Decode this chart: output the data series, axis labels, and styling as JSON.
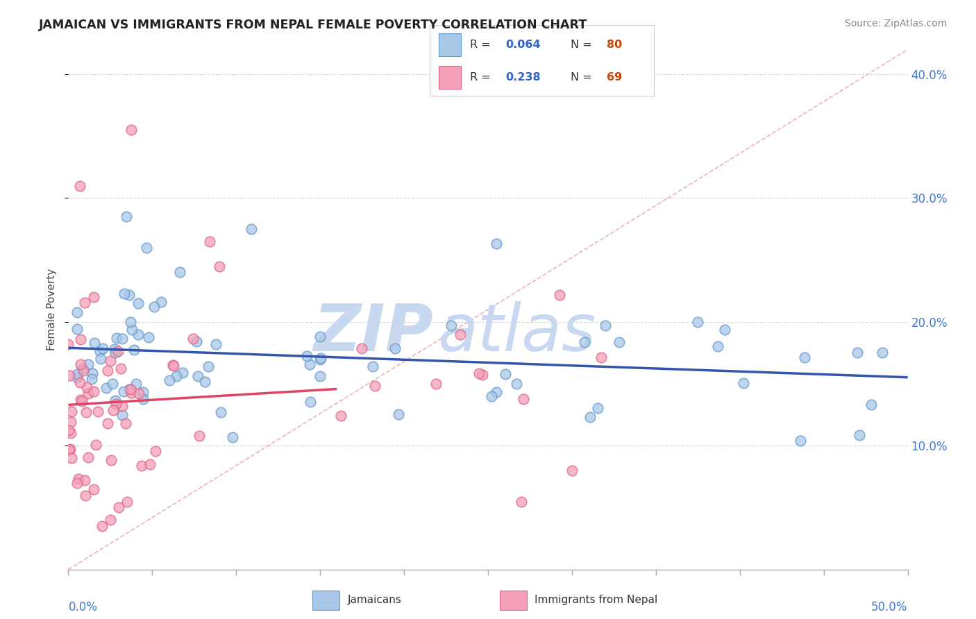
{
  "title": "JAMAICAN VS IMMIGRANTS FROM NEPAL FEMALE POVERTY CORRELATION CHART",
  "source": "Source: ZipAtlas.com",
  "ylabel": "Female Poverty",
  "xlim": [
    0.0,
    0.5
  ],
  "ylim": [
    0.0,
    0.42
  ],
  "yticks": [
    0.1,
    0.2,
    0.3,
    0.4
  ],
  "ytick_labels": [
    "10.0%",
    "20.0%",
    "30.0%",
    "40.0%"
  ],
  "color_jamaican_fill": "#a8c8e8",
  "color_jamaican_edge": "#6699cc",
  "color_nepal_fill": "#f4a0b8",
  "color_nepal_edge": "#dd6688",
  "color_trend_blue": "#3355aa",
  "color_trend_pink": "#dd4466",
  "color_diagonal": "#e8a0a8",
  "color_grid": "#cccccc",
  "background_color": "#ffffff",
  "watermark_zip_color": "#c8d8f0",
  "watermark_atlas_color": "#c8d8f0"
}
